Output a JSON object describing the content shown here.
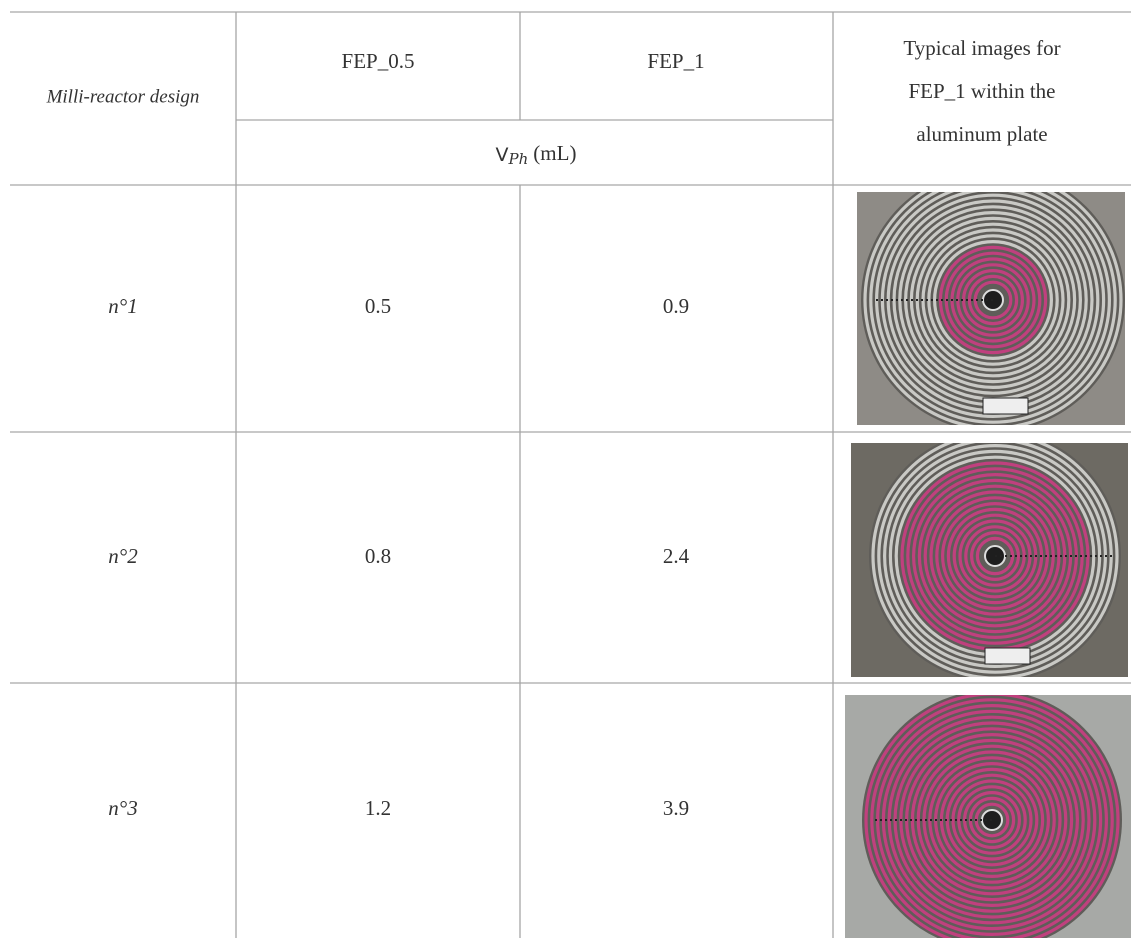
{
  "table": {
    "header": {
      "design": "Milli-reactor design",
      "columns": [
        "FEP_0.5",
        "FEP_1"
      ],
      "unit_label": {
        "symbol": "V",
        "subscript": "Ph",
        "unit": "(mL)"
      },
      "image_column": [
        "Typical images for",
        "FEP_1 within the",
        "aluminum plate"
      ]
    },
    "rows": [
      {
        "design": "n°1",
        "values": [
          "0.5",
          "0.9"
        ]
      },
      {
        "design": "n°2",
        "values": [
          "0.8",
          "2.4"
        ]
      },
      {
        "design": "n°3",
        "values": [
          "1.2",
          "3.9"
        ]
      }
    ]
  }
}
